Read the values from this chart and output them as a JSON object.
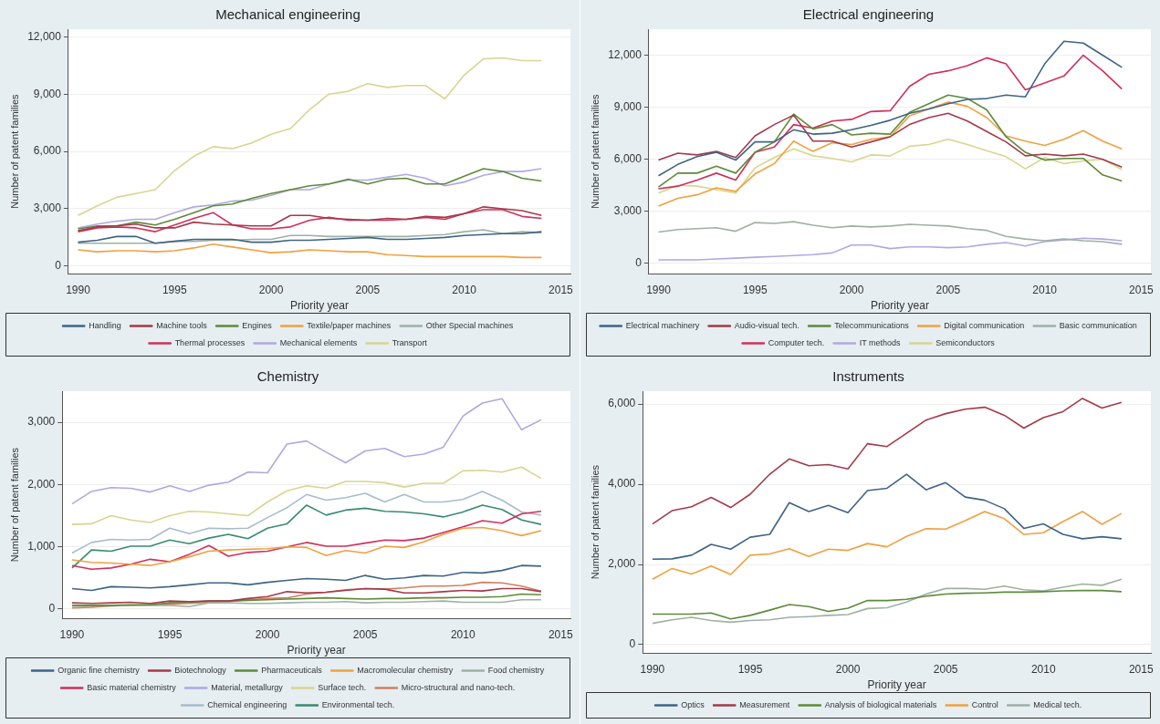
{
  "chart_data": [
    {
      "type": "line",
      "title": "Mechanical engineering",
      "xlabel": "Priority year",
      "ylabel": "Number of patent families",
      "x": [
        1990,
        1991,
        1992,
        1993,
        1994,
        1995,
        1996,
        1997,
        1998,
        1999,
        2000,
        2001,
        2002,
        2003,
        2004,
        2005,
        2006,
        2007,
        2008,
        2009,
        2010,
        2011,
        2012,
        2013,
        2014
      ],
      "xlim": [
        1989.5,
        2015.5
      ],
      "xticks": [
        1990,
        1995,
        2000,
        2005,
        2010,
        2015
      ],
      "ylim": [
        -400,
        12400
      ],
      "yticks": [
        {
          "value": 0,
          "label": "0"
        },
        {
          "value": 3000,
          "label": "3,000"
        },
        {
          "value": 6000,
          "label": "6,000"
        },
        {
          "value": 9000,
          "label": "9,000"
        },
        {
          "value": 12000,
          "label": "12,000"
        }
      ],
      "grid": "y",
      "legend": "bottom",
      "marker": "none",
      "series": [
        {
          "name": "Handling",
          "color": "#3e6485",
          "values": [
            1250,
            1350,
            1550,
            1550,
            1200,
            1300,
            1400,
            1400,
            1400,
            1250,
            1250,
            1350,
            1350,
            1400,
            1450,
            1500,
            1400,
            1400,
            1450,
            1500,
            1600,
            1650,
            1700,
            1700,
            1800
          ]
        },
        {
          "name": "Machine tools",
          "color": "#a33a4a",
          "values": [
            1850,
            2050,
            2100,
            2200,
            2000,
            2000,
            2300,
            2200,
            2150,
            2100,
            2100,
            2650,
            2650,
            2500,
            2450,
            2400,
            2500,
            2450,
            2600,
            2550,
            2750,
            3100,
            3000,
            2900,
            2650
          ]
        },
        {
          "name": "Engines",
          "color": "#5e8a3a",
          "values": [
            1950,
            2100,
            2100,
            2300,
            2150,
            2450,
            2800,
            3150,
            3250,
            3550,
            3800,
            4000,
            4200,
            4300,
            4550,
            4300,
            4550,
            4600,
            4300,
            4300,
            4700,
            5100,
            4950,
            4600,
            4450
          ]
        },
        {
          "name": "Textile/paper machines",
          "color": "#f0a040",
          "values": [
            850,
            750,
            800,
            800,
            750,
            800,
            950,
            1150,
            1000,
            850,
            700,
            750,
            850,
            800,
            750,
            750,
            600,
            550,
            500,
            500,
            500,
            500,
            500,
            450,
            450
          ]
        },
        {
          "name": "Other Special machines",
          "color": "#9fb0a4",
          "values": [
            1200,
            1200,
            1200,
            1200,
            1200,
            1300,
            1300,
            1350,
            1350,
            1400,
            1400,
            1600,
            1600,
            1550,
            1550,
            1550,
            1550,
            1550,
            1600,
            1650,
            1800,
            1900,
            1700,
            1800,
            1750
          ]
        },
        {
          "name": "Thermal processes",
          "color": "#d0305a",
          "values": [
            1800,
            2000,
            2050,
            2000,
            1800,
            2150,
            2500,
            2800,
            2150,
            1950,
            1950,
            2050,
            2400,
            2550,
            2400,
            2400,
            2400,
            2450,
            2550,
            2450,
            2750,
            2950,
            2950,
            2600,
            2500
          ]
        },
        {
          "name": "Mechanical elements",
          "color": "#b0a8e0",
          "values": [
            2000,
            2200,
            2350,
            2450,
            2450,
            2800,
            3100,
            3200,
            3400,
            3450,
            3700,
            4000,
            4000,
            4300,
            4500,
            4500,
            4650,
            4800,
            4600,
            4200,
            4400,
            4750,
            4950,
            4950,
            5100
          ]
        },
        {
          "name": "Transport",
          "color": "#d6d690",
          "values": [
            2650,
            3150,
            3600,
            3800,
            4000,
            5000,
            5750,
            6250,
            6150,
            6450,
            6900,
            7200,
            8200,
            9000,
            9150,
            9550,
            9350,
            9450,
            9450,
            8750,
            10000,
            10850,
            10900,
            10750,
            10750
          ]
        }
      ]
    },
    {
      "type": "line",
      "title": "Electrical engineering",
      "xlabel": "Priority year",
      "ylabel": "Number of patent families",
      "x": [
        1990,
        1991,
        1992,
        1993,
        1994,
        1995,
        1996,
        1997,
        1998,
        1999,
        2000,
        2001,
        2002,
        2003,
        2004,
        2005,
        2006,
        2007,
        2008,
        2009,
        2010,
        2011,
        2012,
        2013,
        2014
      ],
      "xlim": [
        1989.5,
        2015.5
      ],
      "xticks": [
        1990,
        1995,
        2000,
        2005,
        2010,
        2015
      ],
      "ylim": [
        -600,
        13500
      ],
      "yticks": [
        {
          "value": 0,
          "label": "0"
        },
        {
          "value": 3000,
          "label": "3,000"
        },
        {
          "value": 6000,
          "label": "6,000"
        },
        {
          "value": 9000,
          "label": "9,000"
        },
        {
          "value": 12000,
          "label": "12,000"
        }
      ],
      "grid": "y",
      "legend": "bottom",
      "marker": "none",
      "series": [
        {
          "name": "Electrical machinery",
          "color": "#3e6485",
          "values": [
            5050,
            5700,
            6150,
            6400,
            5950,
            7000,
            7000,
            7700,
            7450,
            7500,
            7700,
            7950,
            8250,
            8650,
            8900,
            9200,
            9450,
            9500,
            9700,
            9600,
            11500,
            12800,
            12700,
            12000,
            11300
          ]
        },
        {
          "name": "Audio-visual tech.",
          "color": "#a33a4a",
          "values": [
            5950,
            6350,
            6250,
            6450,
            6100,
            7350,
            8000,
            8550,
            7050,
            7050,
            6700,
            7000,
            7300,
            8000,
            8400,
            8650,
            8200,
            7600,
            7000,
            6200,
            6300,
            6200,
            6300,
            6000,
            5550
          ]
        },
        {
          "name": "Telecommunications",
          "color": "#5e8a3a",
          "values": [
            4400,
            5200,
            5200,
            5600,
            5200,
            6400,
            7000,
            8600,
            7750,
            8000,
            7400,
            7500,
            7450,
            8700,
            9200,
            9700,
            9500,
            8850,
            7300,
            6400,
            5950,
            6050,
            6050,
            5100,
            4750
          ]
        },
        {
          "name": "Digital communication",
          "color": "#f0a040",
          "values": [
            3300,
            3750,
            3950,
            4350,
            4150,
            5150,
            5750,
            7050,
            6450,
            6950,
            6850,
            7150,
            7300,
            8500,
            8900,
            9300,
            9050,
            8400,
            7350,
            7050,
            6800,
            7150,
            7650,
            7050,
            6600
          ]
        },
        {
          "name": "Basic communication",
          "color": "#9fb0a4",
          "values": [
            1800,
            1950,
            2000,
            2050,
            1850,
            2350,
            2300,
            2400,
            2200,
            2050,
            2150,
            2100,
            2150,
            2250,
            2200,
            2150,
            2000,
            1900,
            1550,
            1400,
            1300,
            1400,
            1300,
            1250,
            1100
          ]
        },
        {
          "name": "Computer tech.",
          "color": "#d0305a",
          "values": [
            4300,
            4450,
            4800,
            5200,
            4800,
            6400,
            6700,
            8000,
            7800,
            8200,
            8300,
            8750,
            8800,
            10200,
            10900,
            11100,
            11400,
            11850,
            11500,
            10000,
            10400,
            10800,
            12000,
            11100,
            10050
          ]
        },
        {
          "name": "IT methods",
          "color": "#b0a8e0",
          "values": [
            200,
            200,
            200,
            250,
            300,
            350,
            400,
            450,
            500,
            600,
            1050,
            1050,
            850,
            950,
            950,
            900,
            950,
            1100,
            1200,
            1000,
            1250,
            1350,
            1450,
            1400,
            1300
          ]
        },
        {
          "name": "Semiconductors",
          "color": "#d6d690",
          "values": [
            4050,
            4500,
            4450,
            4250,
            4050,
            5500,
            6100,
            6600,
            6200,
            6050,
            5850,
            6250,
            6200,
            6750,
            6850,
            7150,
            6850,
            6500,
            6150,
            5450,
            6100,
            5750,
            5900,
            6000,
            5400
          ]
        }
      ]
    },
    {
      "type": "line",
      "title": "Chemistry",
      "xlabel": "Priority year",
      "ylabel": "Number of patent families",
      "x": [
        1990,
        1991,
        1992,
        1993,
        1994,
        1995,
        1996,
        1997,
        1998,
        1999,
        2000,
        2001,
        2002,
        2003,
        2004,
        2005,
        2006,
        2007,
        2008,
        2009,
        2010,
        2011,
        2012,
        2013,
        2014
      ],
      "xlim": [
        1989.5,
        2015.5
      ],
      "xticks": [
        1990,
        1995,
        2000,
        2005,
        2010,
        2015
      ],
      "ylim": [
        -150,
        3500
      ],
      "yticks": [
        {
          "value": 0,
          "label": "0"
        },
        {
          "value": 1000,
          "label": "1,000"
        },
        {
          "value": 2000,
          "label": "2,000"
        },
        {
          "value": 3000,
          "label": "3,000"
        }
      ],
      "grid": "y",
      "legend": "bottom",
      "marker": "none",
      "series": [
        {
          "name": "Organic fine chemistry",
          "color": "#3e6485",
          "values": [
            330,
            300,
            360,
            350,
            340,
            360,
            390,
            420,
            420,
            390,
            430,
            460,
            490,
            480,
            460,
            540,
            480,
            500,
            540,
            530,
            590,
            580,
            620,
            700,
            690
          ]
        },
        {
          "name": "Biotechnology",
          "color": "#a33a4a",
          "values": [
            100,
            90,
            100,
            110,
            90,
            130,
            120,
            130,
            130,
            170,
            200,
            280,
            260,
            270,
            300,
            330,
            320,
            260,
            260,
            280,
            300,
            290,
            330,
            330,
            280
          ]
        },
        {
          "name": "Pharmaceuticals",
          "color": "#5e8a3a",
          "values": [
            60,
            60,
            60,
            70,
            70,
            100,
            110,
            130,
            130,
            140,
            150,
            160,
            170,
            180,
            170,
            160,
            170,
            170,
            180,
            180,
            190,
            190,
            200,
            240,
            230
          ]
        },
        {
          "name": "Macromolecular chemistry",
          "color": "#f0a040",
          "values": [
            790,
            750,
            740,
            720,
            700,
            760,
            840,
            930,
            950,
            960,
            970,
            1000,
            990,
            860,
            940,
            900,
            1010,
            990,
            1080,
            1200,
            1300,
            1310,
            1260,
            1180,
            1260
          ]
        },
        {
          "name": "Food chemistry",
          "color": "#9fb0a4",
          "values": [
            50,
            50,
            50,
            60,
            60,
            60,
            40,
            100,
            100,
            90,
            90,
            100,
            110,
            110,
            120,
            100,
            110,
            110,
            120,
            130,
            110,
            110,
            110,
            150,
            150
          ]
        },
        {
          "name": "Basic material chemistry",
          "color": "#d0305a",
          "values": [
            700,
            640,
            660,
            720,
            800,
            760,
            880,
            1020,
            850,
            910,
            930,
            1000,
            1070,
            1010,
            1010,
            1060,
            1110,
            1100,
            1140,
            1230,
            1320,
            1420,
            1380,
            1530,
            1570
          ]
        },
        {
          "name": "Material, metallurgy",
          "color": "#b0a8e0",
          "values": [
            1690,
            1890,
            1950,
            1940,
            1880,
            1980,
            1890,
            1990,
            2040,
            2200,
            2190,
            2650,
            2700,
            2520,
            2350,
            2540,
            2580,
            2450,
            2490,
            2600,
            3100,
            3310,
            3380,
            2880,
            3040
          ]
        },
        {
          "name": "Surface tech.",
          "color": "#d6d690",
          "values": [
            1360,
            1370,
            1500,
            1430,
            1390,
            1500,
            1570,
            1560,
            1530,
            1500,
            1720,
            1900,
            1980,
            1940,
            2050,
            2050,
            2030,
            1960,
            2020,
            2020,
            2220,
            2230,
            2200,
            2280,
            2100
          ]
        },
        {
          "name": "Micro-structural and nano-tech.",
          "color": "#d08060",
          "values": [
            20,
            30,
            50,
            60,
            70,
            80,
            90,
            110,
            120,
            150,
            170,
            180,
            240,
            270,
            310,
            330,
            320,
            340,
            370,
            370,
            380,
            430,
            420,
            370,
            290
          ]
        },
        {
          "name": "Chemical engineering",
          "color": "#a8bccc",
          "values": [
            900,
            1070,
            1120,
            1110,
            1120,
            1300,
            1210,
            1300,
            1290,
            1300,
            1470,
            1630,
            1840,
            1750,
            1790,
            1860,
            1720,
            1840,
            1720,
            1720,
            1760,
            1890,
            1750,
            1560,
            1510
          ]
        },
        {
          "name": "Environmental tech.",
          "color": "#3a8a70",
          "values": [
            660,
            950,
            930,
            1010,
            1010,
            1110,
            1050,
            1140,
            1200,
            1130,
            1300,
            1370,
            1670,
            1510,
            1590,
            1620,
            1570,
            1560,
            1530,
            1480,
            1560,
            1670,
            1600,
            1430,
            1360
          ]
        }
      ]
    },
    {
      "type": "line",
      "title": "Instruments",
      "xlabel": "Priority year",
      "ylabel": "Number of patent families",
      "x": [
        1990,
        1991,
        1992,
        1993,
        1994,
        1995,
        1996,
        1997,
        1998,
        1999,
        2000,
        2001,
        2002,
        2003,
        2004,
        2005,
        2006,
        2007,
        2008,
        2009,
        2010,
        2011,
        2012,
        2013,
        2014
      ],
      "xlim": [
        1989.5,
        2015.5
      ],
      "xticks": [
        1990,
        1995,
        2000,
        2005,
        2010,
        2015
      ],
      "ylim": [
        -210,
        6320
      ],
      "yticks": [
        {
          "value": 0,
          "label": "0"
        },
        {
          "value": 2000,
          "label": "2,000"
        },
        {
          "value": 4000,
          "label": "4,000"
        },
        {
          "value": 6000,
          "label": "6,000"
        }
      ],
      "grid": "y",
      "legend": "bottom",
      "marker": "none",
      "series": [
        {
          "name": "Optics",
          "color": "#3e6485",
          "values": [
            2130,
            2140,
            2230,
            2500,
            2380,
            2680,
            2750,
            3540,
            3320,
            3470,
            3290,
            3840,
            3900,
            4250,
            3860,
            4040,
            3680,
            3600,
            3390,
            2900,
            3010,
            2750,
            2640,
            2690,
            2640
          ]
        },
        {
          "name": "Measurement",
          "color": "#a33a4a",
          "values": [
            3010,
            3340,
            3440,
            3670,
            3420,
            3750,
            4250,
            4630,
            4460,
            4490,
            4380,
            5010,
            4940,
            5270,
            5600,
            5760,
            5870,
            5920,
            5720,
            5400,
            5660,
            5810,
            6140,
            5900,
            6040
          ]
        },
        {
          "name": "Analysis of biological materials",
          "color": "#5e8a3a",
          "values": [
            760,
            760,
            760,
            790,
            640,
            730,
            860,
            1000,
            950,
            830,
            910,
            1100,
            1100,
            1130,
            1210,
            1260,
            1280,
            1290,
            1310,
            1310,
            1320,
            1340,
            1350,
            1350,
            1320
          ]
        },
        {
          "name": "Control",
          "color": "#f0a040",
          "values": [
            1630,
            1900,
            1760,
            1960,
            1750,
            2230,
            2260,
            2390,
            2200,
            2380,
            2350,
            2520,
            2440,
            2700,
            2890,
            2880,
            3090,
            3320,
            3140,
            2750,
            2790,
            3070,
            3320,
            3000,
            3270
          ]
        },
        {
          "name": "Medical tech.",
          "color": "#9fb0a4",
          "values": [
            530,
            620,
            680,
            600,
            560,
            600,
            620,
            680,
            700,
            730,
            750,
            900,
            920,
            1060,
            1260,
            1400,
            1400,
            1380,
            1460,
            1370,
            1340,
            1430,
            1510,
            1480,
            1630
          ]
        }
      ]
    }
  ]
}
